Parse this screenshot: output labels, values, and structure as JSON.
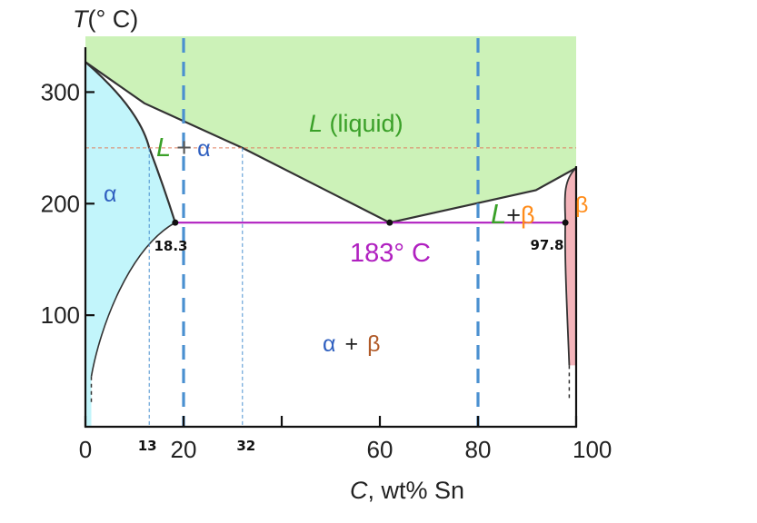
{
  "chart_data": {
    "type": "phase-diagram",
    "title": "",
    "ylabel": {
      "italic": "T",
      "rest": "(° C)"
    },
    "xlabel": {
      "italic": "C",
      "rest": ", wt% Sn"
    },
    "xlim": [
      0,
      100
    ],
    "ylim": [
      0,
      350
    ],
    "x_ticks": [
      {
        "value": 0,
        "label": "0"
      },
      {
        "value": 20,
        "label": "20"
      },
      {
        "value": 40,
        "label": ""
      },
      {
        "value": 60,
        "label": "60"
      },
      {
        "value": 80,
        "label": "80"
      },
      {
        "value": 100,
        "label": "100"
      }
    ],
    "y_ticks": [
      {
        "value": 100,
        "label": "100"
      },
      {
        "value": 200,
        "label": "200"
      },
      {
        "value": 300,
        "label": "300"
      }
    ],
    "extra_x_labels": [
      {
        "value": 13,
        "label": "13"
      },
      {
        "value": 32,
        "label": "32"
      }
    ],
    "regions": {
      "liquid": {
        "italic": "L",
        "rest": " (liquid)"
      },
      "alpha": "α",
      "beta": "β",
      "liquid_alpha": {
        "l": "L",
        "plus": "+",
        "phase": "α"
      },
      "liquid_beta": {
        "l": "L",
        "plus": "+",
        "phase": "β"
      },
      "alpha_beta": {
        "a": "α",
        "plus": "+",
        "b": "β"
      }
    },
    "eutectic": {
      "label": "183° C",
      "T": 183,
      "C": 62
    },
    "points": {
      "alpha_max": {
        "C": 18.3,
        "T": 183,
        "label": "18.3"
      },
      "beta_min": {
        "C": 97.8,
        "T": 183,
        "label": "97.8"
      }
    },
    "melting_points": {
      "Pb": 327,
      "Sn": 232
    },
    "isotherm": {
      "T": 250,
      "C_alpha": 13,
      "C_liquid": 32
    },
    "composition_lines": [
      20,
      80
    ],
    "colors": {
      "liquid": "#ccf2b8",
      "alpha": "#c2f5fb",
      "beta": "#f4b4ba",
      "eutectic_line": "#b020c0",
      "isotherm": "#e08060",
      "composition": "#4a90d0",
      "guides": "#4a90d0",
      "liquid_label": "#3aa028",
      "alpha_label": "#3060c0",
      "beta_label": "#ff8c1a",
      "alpha_beta_b": "#b05a28"
    }
  }
}
